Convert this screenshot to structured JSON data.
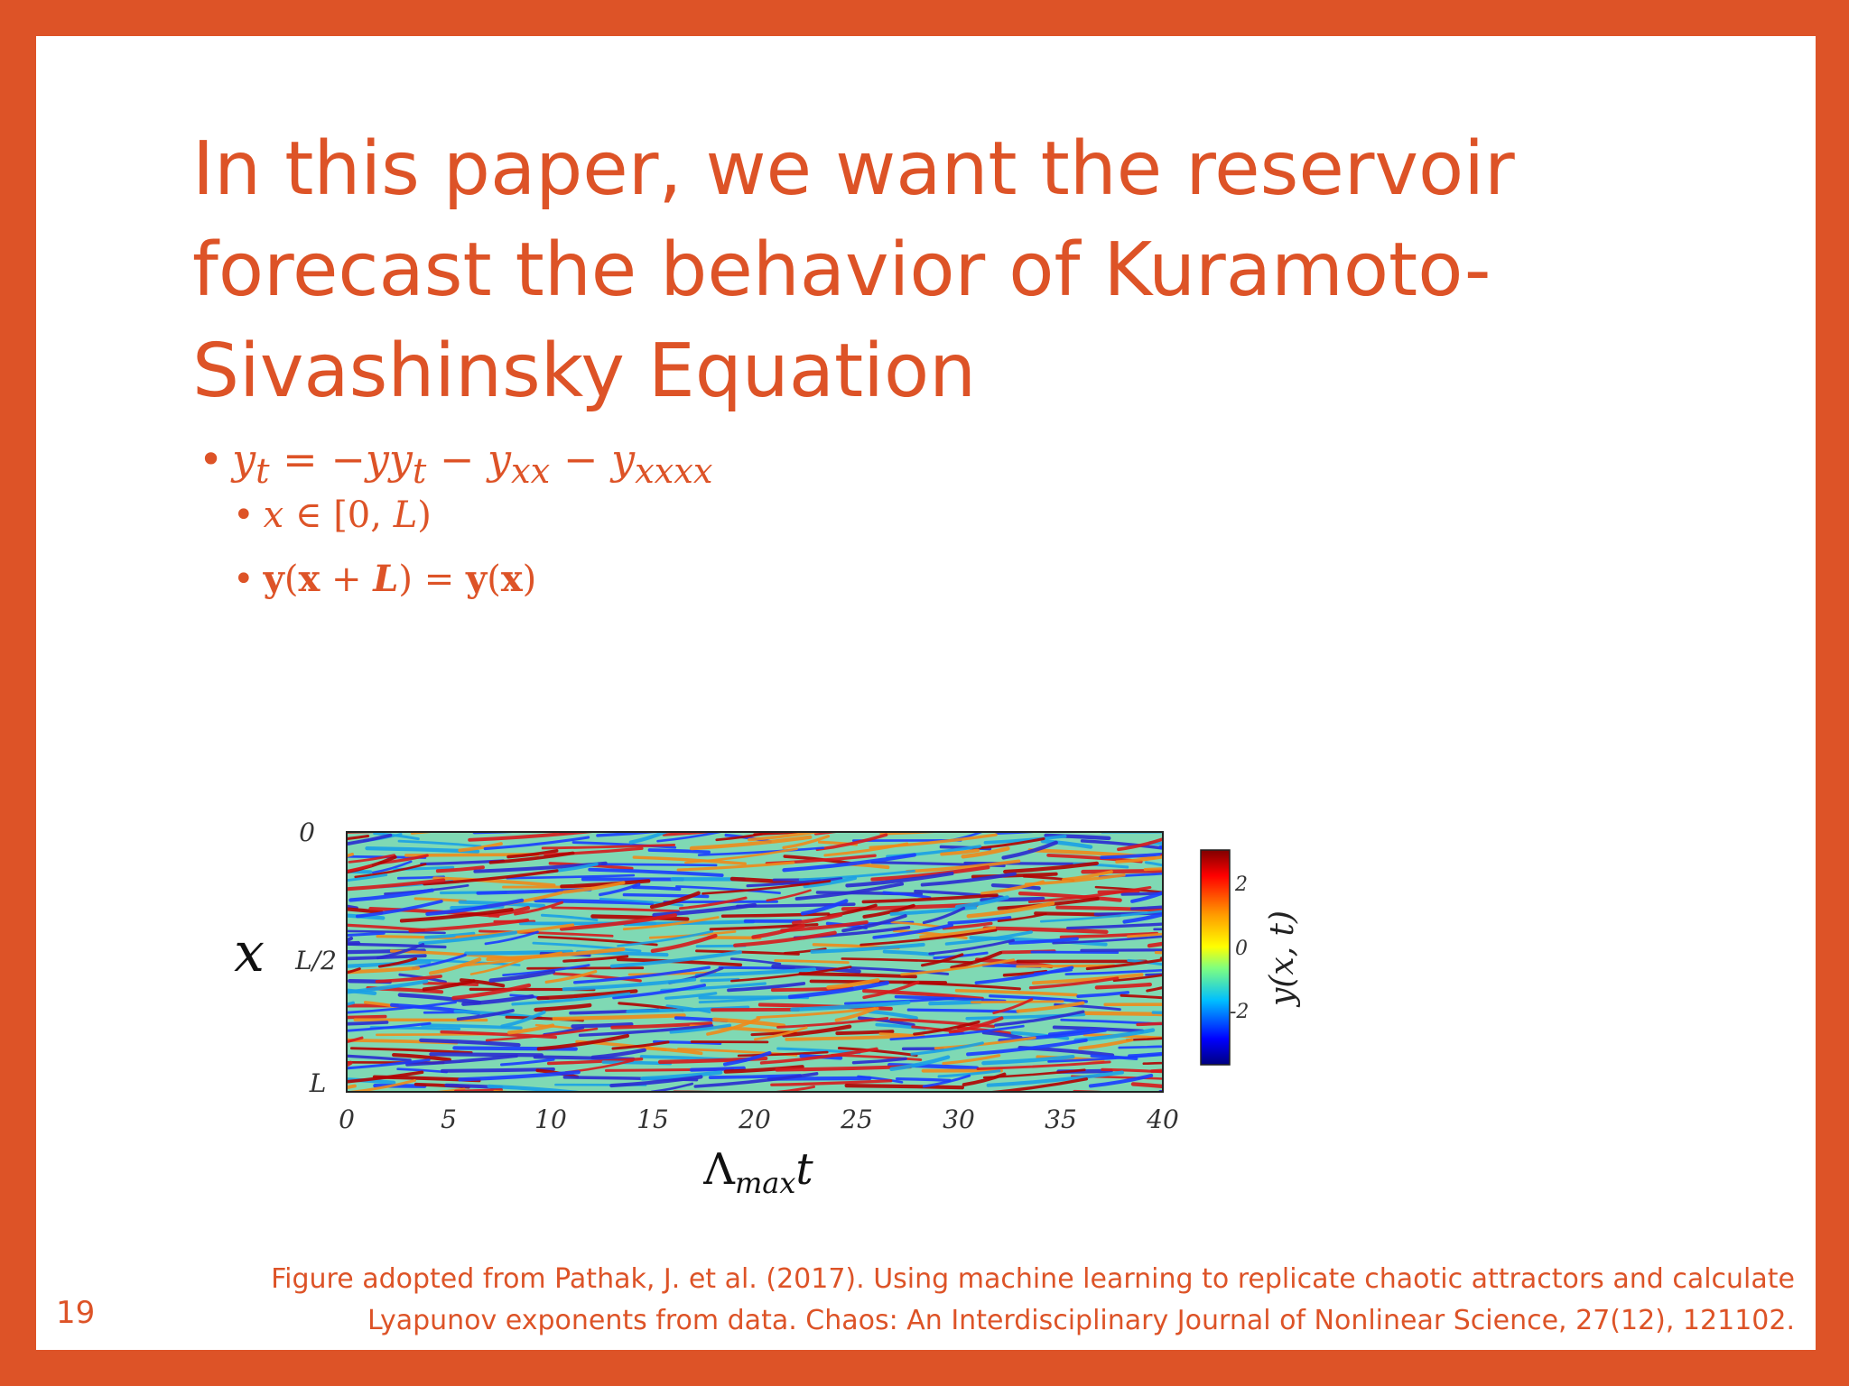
{
  "slide": {
    "title_lines": [
      "In this paper, we want the reservoir",
      "forecast the behavior of Kuramoto-",
      "Sivashinsky Equation"
    ],
    "equation": {
      "main": "y_t = −yy_t − y_xx − y_xxxx",
      "sub1": "x ∈ [0, L)",
      "sub2": "y(x + L) = y(x)"
    },
    "caption_lines": [
      "Figure adopted from Pathak, J. et al. (2017). Using machine learning to replicate chaotic attractors and calculate",
      "Lyapunov exponents from data. Chaos: An Interdisciplinary Journal of Nonlinear Science, 27(12), 121102."
    ],
    "page_number": "19"
  },
  "colors": {
    "accent": "#DD5327",
    "background": "#FFFFFF"
  },
  "chart_data": {
    "type": "heatmap",
    "xlabel": "Λmax t",
    "ylabel": "x",
    "x_ticks": [
      "0",
      "5",
      "10",
      "15",
      "20",
      "25",
      "30",
      "35",
      "40"
    ],
    "x_range": [
      0,
      40
    ],
    "y_ticks": [
      "0",
      "L/2",
      "L"
    ],
    "colorbar": {
      "label": "y(x, t)",
      "ticks": [
        "2",
        "0",
        "-2"
      ],
      "range": [
        -3.5,
        3.5
      ],
      "colormap": "jet"
    }
  }
}
